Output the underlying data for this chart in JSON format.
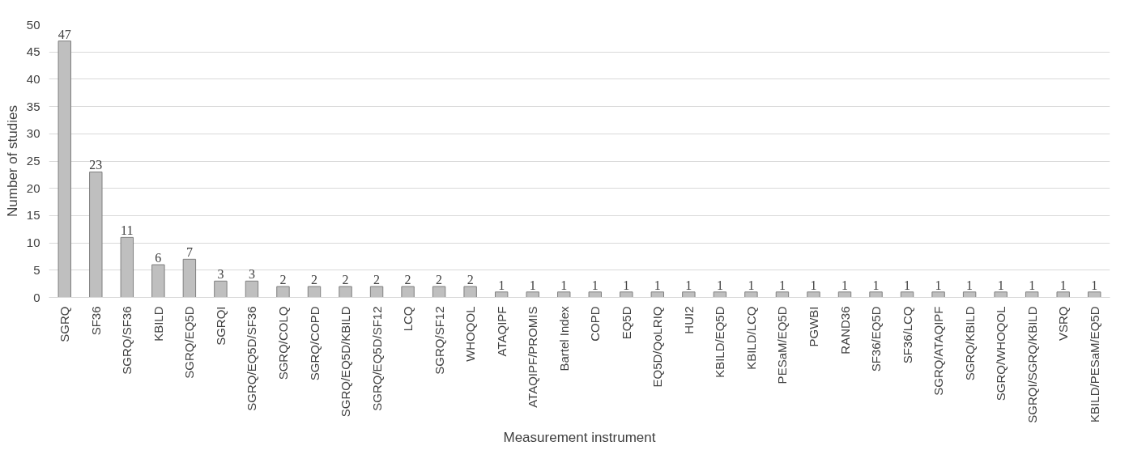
{
  "chart_data": {
    "type": "bar",
    "xlabel": "Measurement instrument",
    "ylabel": "Number of studies",
    "categories": [
      "SGRQ",
      "SF36",
      "SGRQ/SF36",
      "KBILD",
      "SGRQ/EQ5D",
      "SGRQI",
      "SGRQ/EQ5D/SF36",
      "SGRQ/COLQ",
      "SGRQ/COPD",
      "SGRQ/EQ5D/KBILD",
      "SGRQ/EQ5D/SF12",
      "LCQ",
      "SGRQ/SF12",
      "WHOQOL",
      "ATAQIPF",
      "ATAQIPF/PROMIS",
      "Bartel Index",
      "COPD",
      "EQ5D",
      "EQ5D/QoLRIQ",
      "HUI2",
      "KBILD/EQ5D",
      "KBILD/LCQ",
      "PESaM/EQ5D",
      "PGWBI",
      "RAND36",
      "SF36/EQ5D",
      "SF36/LCQ",
      "SGRQ/ATAQIPF",
      "SGRQ/KBILD",
      "SGRQ/WHOQOL",
      "SGRQI/SGRQ/KBILD",
      "VSRQ",
      "KBILD/PESaM/EQ5D"
    ],
    "values": [
      47,
      23,
      11,
      6,
      7,
      3,
      3,
      2,
      2,
      2,
      2,
      2,
      2,
      2,
      1,
      1,
      1,
      1,
      1,
      1,
      1,
      1,
      1,
      1,
      1,
      1,
      1,
      1,
      1,
      1,
      1,
      1,
      1,
      1
    ],
    "color": "#bfbfbf",
    "ylim": [
      0,
      50
    ],
    "yticks": [
      0,
      5,
      10,
      15,
      20,
      25,
      30,
      35,
      40,
      45,
      50
    ],
    "grid": "y",
    "data_labels": true
  }
}
